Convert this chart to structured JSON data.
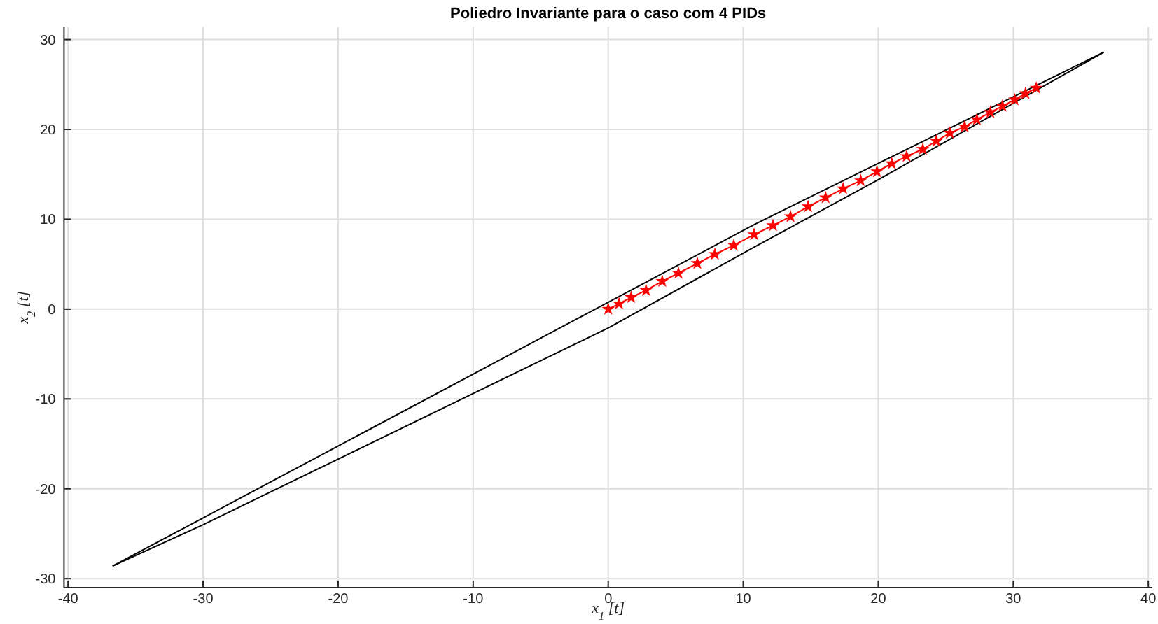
{
  "chart_data": {
    "type": "line",
    "title": "Poliedro Invariante para o caso com 4 PIDs",
    "xlabel": "x$_{1}$ [t]",
    "ylabel": "x$_{2}$ [t]",
    "xlim": [
      -40.3,
      40.3
    ],
    "ylim": [
      -31,
      31.4
    ],
    "xticks": [
      -40,
      -30,
      -20,
      -10,
      0,
      10,
      20,
      30,
      40
    ],
    "yticks": [
      -30,
      -20,
      -10,
      0,
      10,
      20,
      30
    ],
    "grid": true,
    "series": [
      {
        "color": "#000000",
        "marker": "none",
        "x": [
          -36.7,
          10.8,
          36.7
        ],
        "values": [
          -28.6,
          9.4,
          28.6
        ]
      },
      {
        "color": "#000000",
        "marker": "none",
        "x": [
          -36.7,
          -30,
          0,
          10.8,
          20,
          36.7
        ],
        "values": [
          -28.6,
          -24.0,
          -2.1,
          6.9,
          14.4,
          28.6
        ]
      },
      {
        "color": "#ff0000",
        "marker": "star",
        "x": [
          0,
          0.8,
          1.7,
          2.8,
          4.0,
          5.2,
          6.6,
          7.9,
          9.3,
          10.8,
          12.2,
          13.5,
          14.8,
          16.1,
          17.4,
          18.7,
          19.9,
          21.0,
          22.1,
          23.3,
          24.3,
          25.3,
          26.4,
          27.3,
          28.3,
          29.2,
          30.1,
          30.9,
          31.7
        ],
        "values": [
          0,
          0.6,
          1.3,
          2.1,
          3.1,
          4.0,
          5.1,
          6.1,
          7.1,
          8.3,
          9.3,
          10.3,
          11.4,
          12.4,
          13.4,
          14.3,
          15.3,
          16.2,
          17.0,
          17.8,
          18.7,
          19.6,
          20.3,
          21.1,
          21.9,
          22.6,
          23.3,
          24.0,
          24.6
        ]
      }
    ]
  }
}
